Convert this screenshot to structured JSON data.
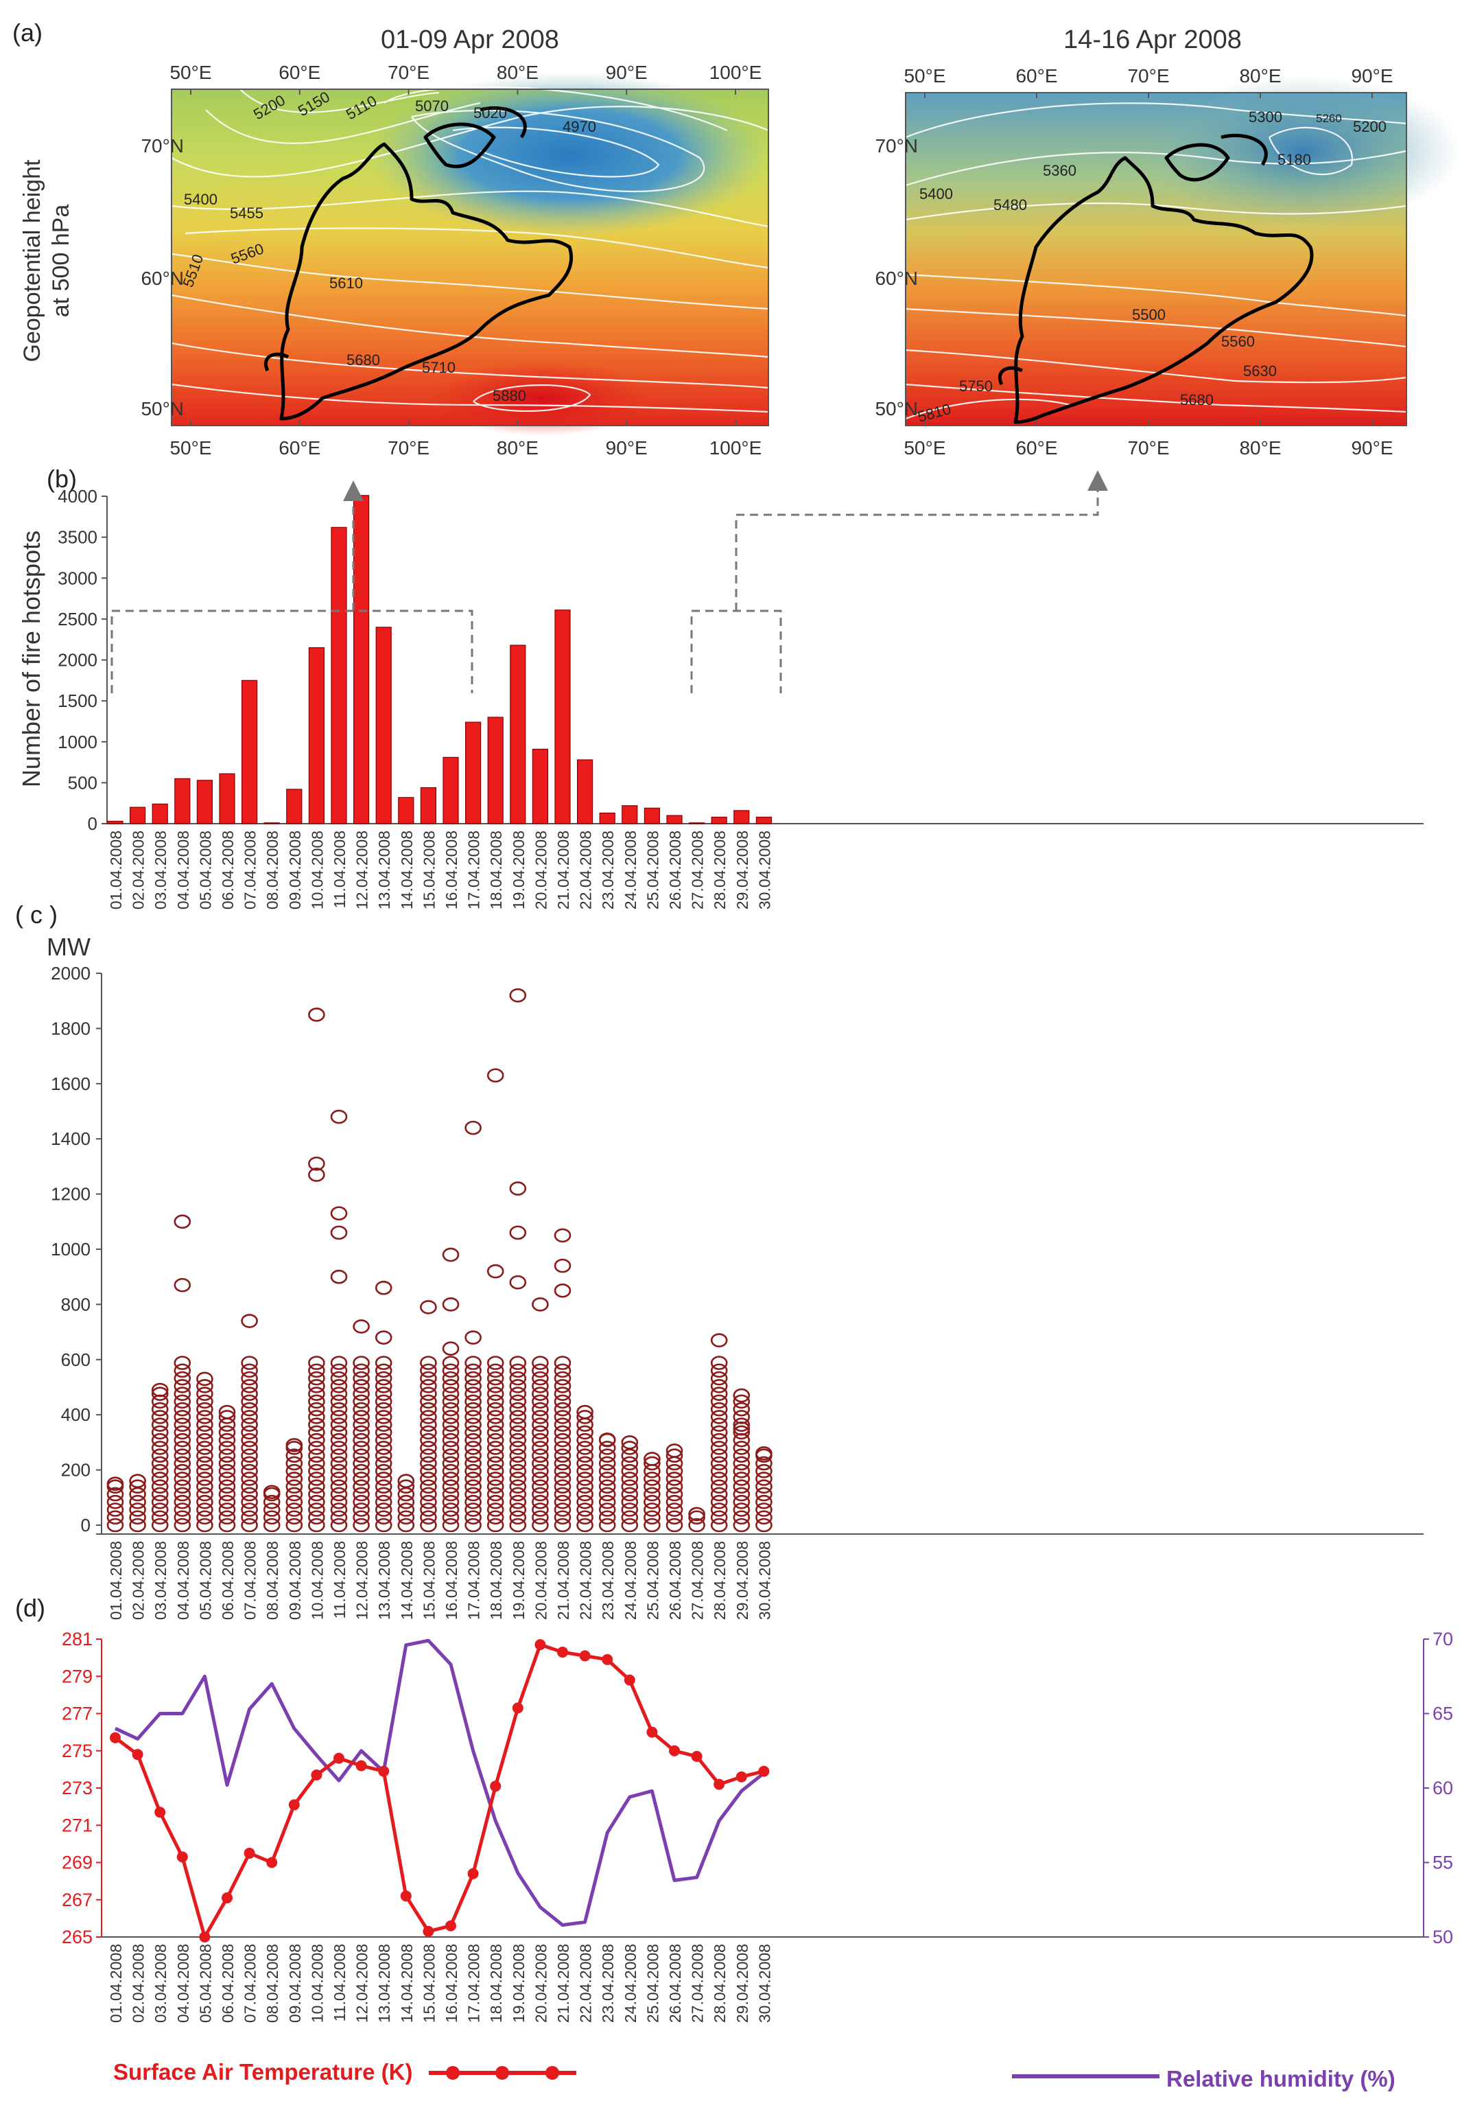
{
  "colors": {
    "bar": "#ea1c1c",
    "frp_marker": "#8b1a1a",
    "temperature": "#e41a1c",
    "humidity": "#7b3fb0",
    "arrow": "#777777",
    "outline": "#000000",
    "contour": "#ffffff"
  },
  "panel_labels": {
    "a": "(a)",
    "b": "(b)",
    "c": "( c )",
    "d": "(d)"
  },
  "maps": {
    "ylabel_line1": "Geopotential height",
    "ylabel_line2": "at 500 hPa",
    "left": {
      "title": "01-09 Apr 2008",
      "lon_ticks": [
        "50°E",
        "60°E",
        "70°E",
        "80°E",
        "90°E",
        "100°E"
      ],
      "lat_ticks": [
        "70°N",
        "60°N",
        "50°N"
      ],
      "contour_labels": [
        "5200",
        "5150",
        "5110",
        "5070",
        "5020",
        "4970",
        "5400",
        "5455",
        "5560",
        "5510",
        "5610",
        "5680",
        "5710",
        "5880"
      ]
    },
    "right": {
      "title": "14-16 Apr 2008",
      "lon_ticks": [
        "50°E",
        "60°E",
        "70°E",
        "80°E",
        "90°E"
      ],
      "lat_ticks": [
        "70°N",
        "60°N",
        "50°N"
      ],
      "contour_labels": [
        "5300",
        "5260",
        "5200",
        "5180",
        "5360",
        "5400",
        "5480",
        "5500",
        "5560",
        "5630",
        "5680",
        "5750",
        "5810"
      ]
    }
  },
  "dates": [
    "01.04.2008",
    "02.04.2008",
    "03.04.2008",
    "04.04.2008",
    "05.04.2008",
    "06.04.2008",
    "07.04.2008",
    "08.04.2008",
    "09.04.2008",
    "10.04.2008",
    "11.04.2008",
    "12.04.2008",
    "13.04.2008",
    "14.04.2008",
    "15.04.2008",
    "16.04.2008",
    "17.04.2008",
    "18.04.2008",
    "19.04.2008",
    "20.04.2008",
    "21.04.2008",
    "22.04.2008",
    "23.04.2008",
    "24.04.2008",
    "25.04.2008",
    "26.04.2008",
    "27.04.2008",
    "28.04.2008",
    "29.04.2008",
    "30.04.2008"
  ],
  "chart_data": [
    {
      "panel": "b",
      "type": "bar",
      "ylabel": "Number of fire hotspots",
      "ylim": [
        0,
        4000
      ],
      "yticks": [
        0,
        500,
        1000,
        1500,
        2000,
        2500,
        3000,
        3500,
        4000
      ],
      "values": [
        30,
        200,
        240,
        550,
        530,
        610,
        1750,
        10,
        420,
        2150,
        3620,
        4010,
        2400,
        320,
        440,
        810,
        1240,
        1300,
        2180,
        910,
        2610,
        780,
        130,
        220,
        190,
        100,
        10,
        80,
        160,
        80
      ]
    },
    {
      "panel": "c",
      "type": "scatter",
      "ylabel": "MW",
      "ylim": [
        0,
        2000
      ],
      "yticks": [
        0,
        200,
        400,
        600,
        800,
        1000,
        1200,
        1400,
        1600,
        1800,
        2000
      ],
      "daily_max": [
        150,
        160,
        490,
        1100,
        530,
        410,
        740,
        120,
        290,
        1850,
        1480,
        720,
        860,
        160,
        790,
        980,
        1440,
        1630,
        1920,
        800,
        1050,
        410,
        310,
        300,
        240,
        270,
        40,
        670,
        470,
        260
      ],
      "notable_points": [
        [
          3,
          870
        ],
        [
          9,
          1310
        ],
        [
          9,
          1270
        ],
        [
          10,
          1130
        ],
        [
          10,
          1060
        ],
        [
          10,
          900
        ],
        [
          12,
          680
        ],
        [
          15,
          800
        ],
        [
          15,
          640
        ],
        [
          16,
          680
        ],
        [
          17,
          920
        ],
        [
          18,
          1220
        ],
        [
          18,
          1060
        ],
        [
          18,
          880
        ],
        [
          20,
          940
        ],
        [
          20,
          850
        ],
        [
          28,
          350
        ]
      ]
    },
    {
      "panel": "d",
      "type": "line",
      "series": [
        {
          "name": "Surface Air Temperature (K)",
          "axis": "left",
          "values": [
            275.7,
            274.8,
            271.7,
            269.3,
            265.0,
            267.1,
            269.5,
            269.0,
            272.1,
            273.7,
            274.6,
            274.2,
            273.9,
            267.2,
            265.3,
            265.6,
            268.4,
            273.1,
            277.3,
            280.7,
            280.3,
            280.1,
            279.9,
            278.8,
            276.0,
            275.0,
            274.7,
            273.2,
            273.6,
            273.9
          ]
        },
        {
          "name": "Relative humidity (%)",
          "axis": "right",
          "values": [
            64.0,
            63.3,
            65.0,
            65.0,
            67.5,
            60.2,
            65.3,
            67.0,
            64.0,
            62.2,
            60.5,
            62.5,
            61.1,
            69.6,
            69.9,
            68.3,
            62.5,
            57.8,
            54.3,
            52.0,
            50.8,
            51.0,
            57.0,
            59.4,
            59.8,
            53.8,
            54.0,
            57.8,
            59.8,
            61.0
          ]
        }
      ],
      "ylim_left": [
        265,
        281
      ],
      "yticks_left": [
        265,
        267,
        269,
        271,
        273,
        275,
        277,
        279,
        281
      ],
      "ylim_right": [
        50,
        70
      ],
      "yticks_right": [
        50,
        55,
        60,
        65,
        70
      ]
    }
  ]
}
